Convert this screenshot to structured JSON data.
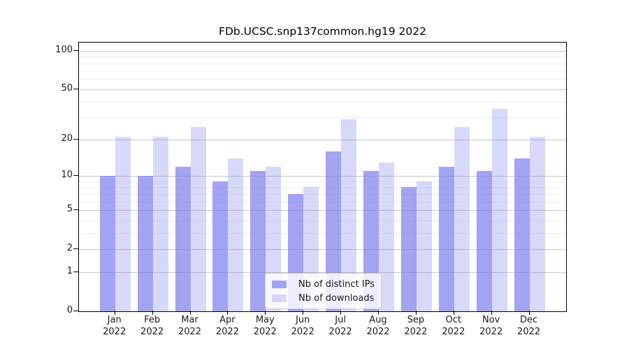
{
  "title": "FDb.UCSC.snp137common.hg19 2022",
  "chart_data": {
    "type": "bar",
    "title": "FDb.UCSC.snp137common.hg19 2022",
    "categories": [
      "Jan",
      "Feb",
      "Mar",
      "Apr",
      "May",
      "Jun",
      "Jul",
      "Aug",
      "Sep",
      "Oct",
      "Nov",
      "Dec"
    ],
    "x_year_suffix": "2022",
    "series": [
      {
        "name": "Nb of distinct IPs",
        "values": [
          10,
          10,
          12,
          9,
          11,
          7,
          16,
          11,
          8,
          12,
          11,
          14
        ]
      },
      {
        "name": "Nb of downloads",
        "values": [
          21,
          21,
          25,
          14,
          12,
          8,
          29,
          13,
          9,
          25,
          35,
          21
        ]
      }
    ],
    "y_axis": {
      "scale": "log1p",
      "major_ticks": [
        0,
        1,
        2,
        5,
        10,
        20,
        50,
        100
      ],
      "minor_gridlines": [
        3,
        4,
        6,
        7,
        8,
        9,
        30,
        40,
        60,
        70,
        80,
        90,
        110
      ],
      "max_value": 115.6,
      "grid": true
    },
    "legend": {
      "position": "lower center"
    },
    "colors": {
      "bar_fill_dark": "rgba(120,120,236,0.68)",
      "bar_fill_light": "rgba(120,120,236,0.29)",
      "grid_major": "#c9c9c9",
      "grid_minor": "#ededed",
      "axis": "#000000",
      "text": "#1a1a1a"
    }
  }
}
